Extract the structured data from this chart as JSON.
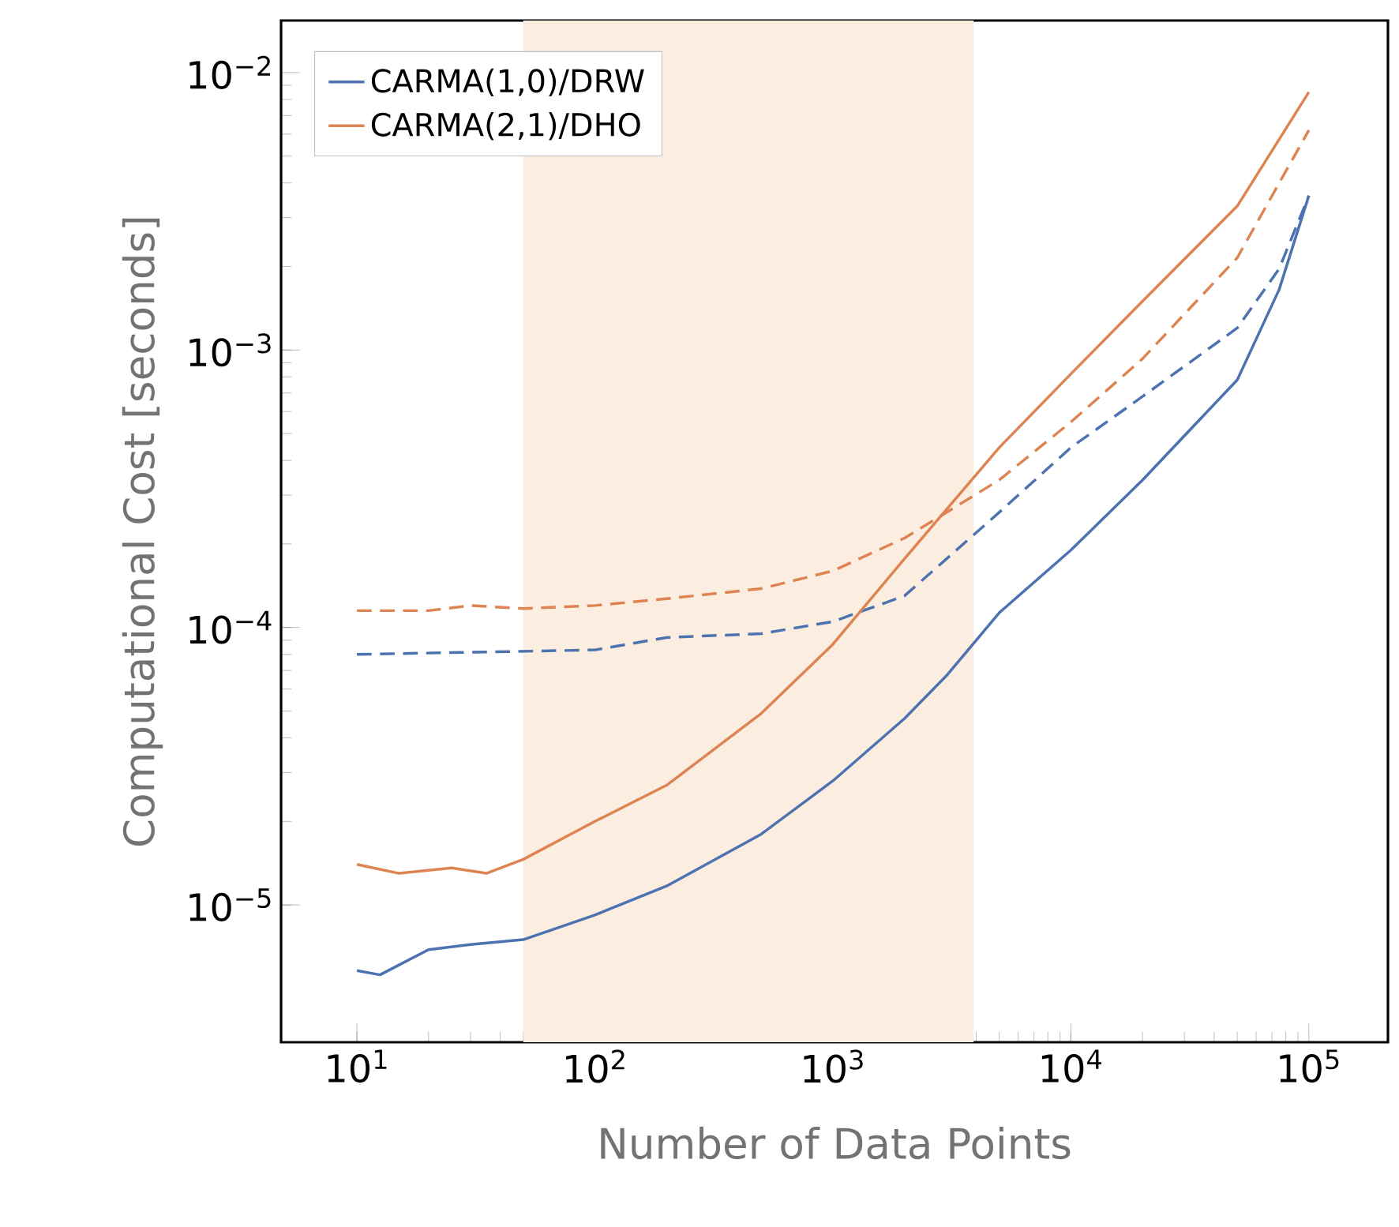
{
  "chart_data": {
    "type": "line",
    "xlabel": "Number of Data Points",
    "ylabel": "Computational Cost [seconds]",
    "log": "xy",
    "legend": "top left",
    "xlim": [
      4.8,
      215000
    ],
    "ylim": [
      3.2e-06,
      0.0154
    ],
    "xticks": [
      {
        "value": 10,
        "label": "10$^{1}$"
      },
      {
        "value": 100,
        "label": "10$^{2}$"
      },
      {
        "value": 1000,
        "label": "10$^{3}$"
      },
      {
        "value": 10000,
        "label": "10$^{4}$"
      },
      {
        "value": 100000,
        "label": "10$^{5}$"
      }
    ],
    "yticks": [
      {
        "value": 1e-05,
        "label": "10$^{−5}$"
      },
      {
        "value": 0.0001,
        "label": "10$^{−4}$"
      },
      {
        "value": 0.001,
        "label": "10$^{−3}$"
      },
      {
        "value": 0.01,
        "label": "10$^{−2}$"
      }
    ],
    "bands": [
      {
        "axis": "x",
        "from": 50,
        "to": 3900,
        "color": "#fcede1"
      }
    ],
    "series": [
      {
        "name": "CARMA(1,0)/DRW",
        "color": "#4c72b0",
        "line_style": "solid",
        "x": [
          10,
          12.5,
          20,
          30,
          50,
          100,
          200,
          500,
          1000,
          2000,
          3000,
          5000,
          10000,
          20000,
          50000,
          75000,
          100000
        ],
        "values": [
          5.8e-06,
          5.6e-06,
          6.9e-06,
          7.2e-06,
          7.5e-06,
          9.2e-06,
          1.17e-05,
          1.8e-05,
          2.8e-05,
          4.7e-05,
          6.7e-05,
          0.000113,
          0.00019,
          0.00034,
          0.00078,
          0.00165,
          0.0036
        ]
      },
      {
        "name": "CARMA(2,1)/DHO",
        "color": "#dd8452",
        "line_style": "solid",
        "x": [
          10,
          15,
          25,
          35,
          50,
          100,
          200,
          500,
          1000,
          2000,
          5000,
          10000,
          20000,
          50000,
          100000
        ],
        "values": [
          1.4e-05,
          1.3e-05,
          1.36e-05,
          1.3e-05,
          1.46e-05,
          2e-05,
          2.7e-05,
          4.9e-05,
          8.7e-05,
          0.000177,
          0.000445,
          0.00082,
          0.0015,
          0.0033,
          0.0085
        ]
      },
      {
        "color": "#4c72b0",
        "line_style": "dashed",
        "x": [
          10,
          100,
          200,
          500,
          1000,
          2000,
          5000,
          10000,
          20000,
          50000,
          75000,
          100000
        ],
        "values": [
          8e-05,
          8.3e-05,
          9.2e-05,
          9.5e-05,
          0.000105,
          0.00013,
          0.00026,
          0.000445,
          0.00068,
          0.0012,
          0.00196,
          0.0036
        ]
      },
      {
        "color": "#dd8452",
        "line_style": "dashed",
        "x": [
          10,
          20,
          30,
          50,
          100,
          200,
          500,
          1000,
          2000,
          5000,
          10000,
          20000,
          50000,
          100000
        ],
        "values": [
          0.000115,
          0.000115,
          0.00012,
          0.000117,
          0.00012,
          0.000127,
          0.000138,
          0.00016,
          0.00021,
          0.00034,
          0.00055,
          0.00093,
          0.00215,
          0.0062
        ]
      }
    ]
  }
}
